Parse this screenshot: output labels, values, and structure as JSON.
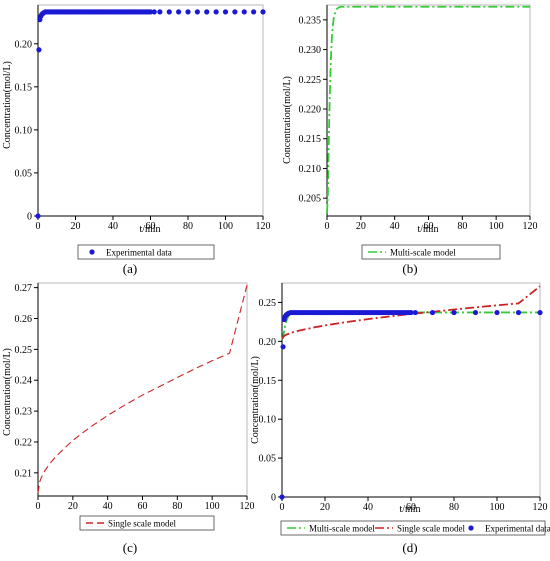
{
  "panel_labels": [
    "(a)",
    "(b)",
    "(c)",
    "(d)"
  ],
  "colors": {
    "experimental": "#1a1ad6",
    "multi_scale": "#33cc33",
    "single_scale": "#cc2222",
    "axis": "#000000",
    "frame": "#b8b8b8"
  },
  "chart_data": [
    {
      "panel": "(a)",
      "type": "scatter",
      "xlabel": "t/min",
      "ylabel": "Concentration(mol/L)",
      "xlim": [
        0,
        120
      ],
      "ylim": [
        0,
        0.245
      ],
      "xticks": [
        "0",
        "20",
        "40",
        "60",
        "80",
        "100",
        "120"
      ],
      "yticks": [
        "0",
        "0.05",
        "0.10",
        "0.15",
        "0.20"
      ],
      "legend_position": "bottom",
      "series": [
        {
          "name": "Experimental data",
          "style": "marker",
          "x": [
            0,
            0.5,
            1,
            1.5,
            2,
            2.5,
            3,
            4,
            5,
            6,
            7,
            8,
            9,
            10,
            11,
            12,
            13,
            14,
            15,
            16,
            17,
            18,
            19,
            20,
            21,
            22,
            23,
            24,
            25,
            26,
            27,
            28,
            29,
            30,
            31,
            32,
            33,
            34,
            35,
            36,
            37,
            38,
            39,
            40,
            41,
            42,
            43,
            44,
            45,
            46,
            47,
            48,
            49,
            50,
            51,
            52,
            53,
            54,
            55,
            56,
            57,
            58,
            59,
            60,
            62,
            65,
            70,
            75,
            80,
            85,
            90,
            95,
            100,
            105,
            110,
            115,
            120
          ],
          "y": [
            0.0,
            0.193,
            0.228,
            0.232,
            0.234,
            0.235,
            0.236,
            0.237,
            0.237,
            0.237,
            0.237,
            0.237,
            0.237,
            0.237,
            0.237,
            0.237,
            0.237,
            0.237,
            0.237,
            0.237,
            0.237,
            0.237,
            0.237,
            0.237,
            0.237,
            0.237,
            0.237,
            0.237,
            0.237,
            0.237,
            0.237,
            0.237,
            0.237,
            0.237,
            0.237,
            0.237,
            0.237,
            0.237,
            0.237,
            0.237,
            0.237,
            0.237,
            0.237,
            0.237,
            0.237,
            0.237,
            0.237,
            0.237,
            0.237,
            0.237,
            0.237,
            0.237,
            0.237,
            0.237,
            0.237,
            0.237,
            0.237,
            0.237,
            0.237,
            0.237,
            0.237,
            0.237,
            0.237,
            0.237,
            0.237,
            0.237,
            0.237,
            0.237,
            0.237,
            0.237,
            0.237,
            0.237,
            0.237,
            0.237,
            0.237,
            0.237,
            0.237
          ]
        }
      ]
    },
    {
      "panel": "(b)",
      "type": "line",
      "xlabel": "t/min",
      "ylabel": "Concentration(mol/L)",
      "xlim": [
        0,
        120
      ],
      "ylim": [
        0.202,
        0.2375
      ],
      "xticks": [
        "0",
        "20",
        "40",
        "60",
        "80",
        "100",
        "120"
      ],
      "yticks": [
        "0.205",
        "0.210",
        "0.215",
        "0.220",
        "0.225",
        "0.230",
        "0.235"
      ],
      "legend_position": "bottom",
      "series": [
        {
          "name": "Multi-scale model",
          "style": "dash-dot",
          "x": [
            0,
            0.5,
            1,
            1.5,
            2,
            2.5,
            3,
            3.5,
            4,
            5,
            6,
            7,
            8,
            9,
            10,
            12,
            15,
            20,
            30,
            40,
            60,
            80,
            100,
            120
          ],
          "y": [
            0.2025,
            0.2055,
            0.2135,
            0.2205,
            0.2258,
            0.2298,
            0.2325,
            0.2342,
            0.2353,
            0.2364,
            0.2369,
            0.2371,
            0.2372,
            0.2372,
            0.2372,
            0.2372,
            0.2372,
            0.2372,
            0.2372,
            0.2372,
            0.2372,
            0.2372,
            0.2372,
            0.2372
          ]
        }
      ]
    },
    {
      "panel": "(c)",
      "type": "line",
      "xlabel": "",
      "ylabel": "Concentration(mol/L)",
      "xlim": [
        0,
        120
      ],
      "ylim": [
        0.2025,
        0.2715
      ],
      "xticks": [
        "0",
        "20",
        "40",
        "60",
        "80",
        "100",
        "120"
      ],
      "yticks": [
        "0.21",
        "0.22",
        "0.23",
        "0.24",
        "0.25",
        "0.26",
        "0.27"
      ],
      "legend_position": "bottom",
      "series": [
        {
          "name": "Single scale model",
          "style": "dash",
          "x": [
            0,
            1,
            2,
            4,
            6,
            8,
            10,
            15,
            20,
            25,
            30,
            40,
            50,
            60,
            70,
            80,
            90,
            100,
            110,
            120
          ],
          "y": [
            0.2035,
            0.2071,
            0.2086,
            0.2107,
            0.2124,
            0.2138,
            0.2151,
            0.2179,
            0.2205,
            0.2227,
            0.2248,
            0.2286,
            0.232,
            0.2352,
            0.238,
            0.2409,
            0.2437,
            0.2463,
            0.2488,
            0.2708
          ]
        }
      ]
    },
    {
      "panel": "(d)",
      "type": "line",
      "xlabel": "t/min",
      "ylabel": "Concentration(mol/L)",
      "xlim": [
        0,
        120
      ],
      "ylim": [
        0,
        0.275
      ],
      "xticks": [
        "0",
        "20",
        "40",
        "60",
        "80",
        "100",
        "120"
      ],
      "yticks": [
        "0",
        "0.05",
        "0.10",
        "0.15",
        "0.20",
        "0.25"
      ],
      "legend_position": "bottom",
      "series": [
        {
          "name": "Multi-scale model",
          "style": "dash-dot",
          "x": [
            0,
            0.5,
            1,
            1.5,
            2,
            2.5,
            3,
            3.5,
            4,
            5,
            6,
            7,
            8,
            9,
            10,
            12,
            15,
            20,
            30,
            40,
            60,
            80,
            100,
            120
          ],
          "y": [
            0.2025,
            0.2055,
            0.2135,
            0.2205,
            0.2258,
            0.2298,
            0.2325,
            0.2342,
            0.2353,
            0.2364,
            0.2369,
            0.2371,
            0.2372,
            0.2372,
            0.2372,
            0.2372,
            0.2372,
            0.2372,
            0.2372,
            0.2372,
            0.2372,
            0.2372,
            0.2372,
            0.2372
          ]
        },
        {
          "name": "Single scale model",
          "style": "dash-dot",
          "x": [
            0,
            1,
            2,
            4,
            6,
            8,
            10,
            15,
            20,
            25,
            30,
            40,
            50,
            60,
            70,
            80,
            90,
            100,
            110,
            120
          ],
          "y": [
            0.2035,
            0.2071,
            0.2086,
            0.2107,
            0.2124,
            0.2138,
            0.2151,
            0.2179,
            0.2205,
            0.2227,
            0.2248,
            0.2286,
            0.232,
            0.2352,
            0.238,
            0.2409,
            0.2437,
            0.2463,
            0.2488,
            0.2708
          ]
        },
        {
          "name": "Experimental data",
          "style": "marker",
          "x": [
            0,
            0.5,
            1,
            1.5,
            2,
            2.5,
            3,
            4,
            5,
            6,
            7,
            8,
            9,
            10,
            11,
            12,
            13,
            14,
            15,
            16,
            17,
            18,
            19,
            20,
            21,
            22,
            23,
            24,
            25,
            26,
            27,
            28,
            29,
            30,
            31,
            32,
            33,
            34,
            35,
            36,
            37,
            38,
            39,
            40,
            41,
            42,
            43,
            44,
            45,
            46,
            47,
            48,
            49,
            50,
            51,
            52,
            53,
            54,
            55,
            56,
            57,
            58,
            59,
            60,
            62,
            70,
            80,
            90,
            100,
            110,
            120
          ],
          "y": [
            0.0,
            0.193,
            0.228,
            0.232,
            0.234,
            0.235,
            0.236,
            0.237,
            0.237,
            0.237,
            0.237,
            0.237,
            0.237,
            0.237,
            0.237,
            0.237,
            0.237,
            0.237,
            0.237,
            0.237,
            0.237,
            0.237,
            0.237,
            0.237,
            0.237,
            0.237,
            0.237,
            0.237,
            0.237,
            0.237,
            0.237,
            0.237,
            0.237,
            0.237,
            0.237,
            0.237,
            0.237,
            0.237,
            0.237,
            0.237,
            0.237,
            0.237,
            0.237,
            0.237,
            0.237,
            0.237,
            0.237,
            0.237,
            0.237,
            0.237,
            0.237,
            0.237,
            0.237,
            0.237,
            0.237,
            0.237,
            0.237,
            0.237,
            0.237,
            0.237,
            0.237,
            0.237,
            0.237,
            0.237,
            0.237,
            0.237,
            0.237,
            0.237,
            0.237,
            0.237,
            0.237
          ]
        }
      ]
    }
  ]
}
